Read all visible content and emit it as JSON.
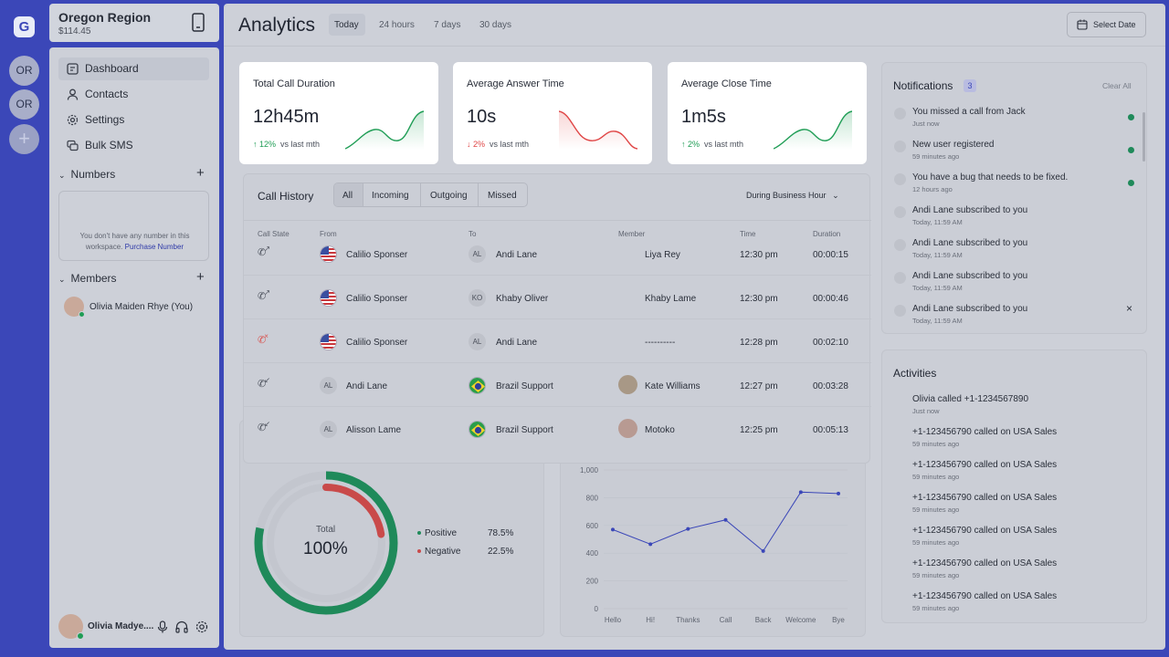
{
  "rail": {
    "logo": "G",
    "workspaces": [
      "OR",
      "OR"
    ],
    "add": "+"
  },
  "workspace": {
    "name": "Oregon Region",
    "balance": "$114.45"
  },
  "nav": {
    "items": [
      {
        "label": "Dashboard",
        "icon": "dashboard-icon"
      },
      {
        "label": "Contacts",
        "icon": "user-icon"
      },
      {
        "label": "Settings",
        "icon": "gear-icon"
      },
      {
        "label": "Bulk SMS",
        "icon": "chat-icon"
      }
    ]
  },
  "numbers": {
    "title": "Numbers",
    "empty_text": "You don't have any number in this workspace.",
    "purchase_link": "Purchase Number"
  },
  "members": {
    "title": "Members",
    "items": [
      {
        "name": "Olivia Maiden Rhye (You)"
      }
    ]
  },
  "user": {
    "name": "Olivia Madye...."
  },
  "header": {
    "title": "Analytics",
    "ranges": [
      "Today",
      "24 hours",
      "7 days",
      "30 days"
    ],
    "select_date": "Select Date"
  },
  "stats": [
    {
      "title": "Total Call Duration",
      "value": "12h45m",
      "change": "12%",
      "direction": "up",
      "compare": "vs last mth",
      "color": "#1f9d55"
    },
    {
      "title": "Average Answer Time",
      "value": "10s",
      "change": "2%",
      "direction": "down",
      "compare": "vs last mth",
      "color": "#e04646"
    },
    {
      "title": "Average Close Time",
      "value": "1m5s",
      "change": "2%",
      "direction": "up",
      "compare": "vs last mth",
      "color": "#1f9d55"
    }
  ],
  "call_history": {
    "title": "Call History",
    "filters": [
      "All",
      "Incoming",
      "Outgoing",
      "Missed"
    ],
    "period": "During Business Hour",
    "columns": [
      "Call State",
      "From",
      "To",
      "Member",
      "Time",
      "Duration"
    ],
    "rows": [
      {
        "state": "outgoing",
        "from": "Calilio Sponser",
        "from_type": "us",
        "to": "Andi Lane",
        "to_type": "AL",
        "member": "Liya Rey",
        "time": "12:30 pm",
        "duration": "00:00:15"
      },
      {
        "state": "outgoing",
        "from": "Calilio Sponser",
        "from_type": "us",
        "to": "Khaby Oliver",
        "to_type": "KO",
        "member": "Khaby Lame",
        "time": "12:30 pm",
        "duration": "00:00:46"
      },
      {
        "state": "missed",
        "from": "Calilio Sponser",
        "from_type": "us",
        "to": "Andi Lane",
        "to_type": "AL",
        "member": "----------",
        "time": "12:28 pm",
        "duration": "00:02:10"
      },
      {
        "state": "incoming",
        "from": "Andi Lane",
        "from_type": "AL",
        "to": "Brazil Support",
        "to_type": "br",
        "member": "Kate Williams",
        "time": "12:27 pm",
        "duration": "00:03:28"
      },
      {
        "state": "incoming",
        "from": "Alisson Lame",
        "from_type": "AL",
        "to": "Brazil Support",
        "to_type": "br",
        "member": "Motoko",
        "time": "12:25 pm",
        "duration": "00:05:13"
      }
    ]
  },
  "sentiment": {
    "center_label": "Total",
    "center_value": "100%",
    "legend": [
      {
        "name": "Positive",
        "value": "78.5%",
        "color": "#1f8a5a",
        "pct": 78.5
      },
      {
        "name": "Negative",
        "value": "22.5%",
        "color": "#c94a4a",
        "pct": 22.5
      }
    ]
  },
  "chart_data": {
    "type": "line",
    "categories": [
      "Hello",
      "Hi!",
      "Thanks",
      "Call",
      "Back",
      "Welcome",
      "Bye"
    ],
    "values": [
      570,
      465,
      575,
      640,
      415,
      840,
      830
    ],
    "yticks": [
      "0",
      "200",
      "400",
      "600",
      "800",
      "1,000"
    ],
    "ylim": [
      0,
      1000
    ],
    "color": "#3b47b8"
  },
  "notifications": {
    "title": "Notifications",
    "count": "3",
    "clear": "Clear All",
    "items": [
      {
        "title": "You missed a call from Jack",
        "time": "Just now",
        "unread": true,
        "icon": "bug-icon"
      },
      {
        "title": "New user registered",
        "time": "59 minutes ago",
        "unread": true,
        "icon": "user-icon"
      },
      {
        "title": "You have a bug that needs to be fixed.",
        "time": "12 hours ago",
        "unread": true,
        "icon": "bug-icon"
      },
      {
        "title": "Andi Lane subscribed to you",
        "time": "Today, 11:59 AM",
        "unread": false,
        "icon": "broadcast-icon"
      },
      {
        "title": "Andi Lane subscribed to you",
        "time": "Today, 11:59 AM",
        "unread": false,
        "icon": "broadcast-icon"
      },
      {
        "title": "Andi Lane subscribed to you",
        "time": "Today, 11:59 AM",
        "unread": false,
        "icon": "broadcast-icon"
      },
      {
        "title": "Andi Lane subscribed to you",
        "time": "Today, 11:59 AM",
        "unread": false,
        "icon": "broadcast-icon",
        "closable": true
      }
    ]
  },
  "activities": {
    "title": "Activities",
    "items": [
      {
        "title": "Olivia called +1-1234567890",
        "time": "Just now"
      },
      {
        "title": "+1-123456790 called on USA Sales",
        "time": "59 minutes ago"
      },
      {
        "title": "+1-123456790 called on USA Sales",
        "time": "59 minutes ago"
      },
      {
        "title": "+1-123456790 called on USA Sales",
        "time": "59 minutes ago"
      },
      {
        "title": "+1-123456790 called on USA Sales",
        "time": "59 minutes ago"
      },
      {
        "title": "+1-123456790 called on USA Sales",
        "time": "59 minutes ago"
      },
      {
        "title": "+1-123456790 called on USA Sales",
        "time": "59 minutes ago"
      }
    ]
  }
}
